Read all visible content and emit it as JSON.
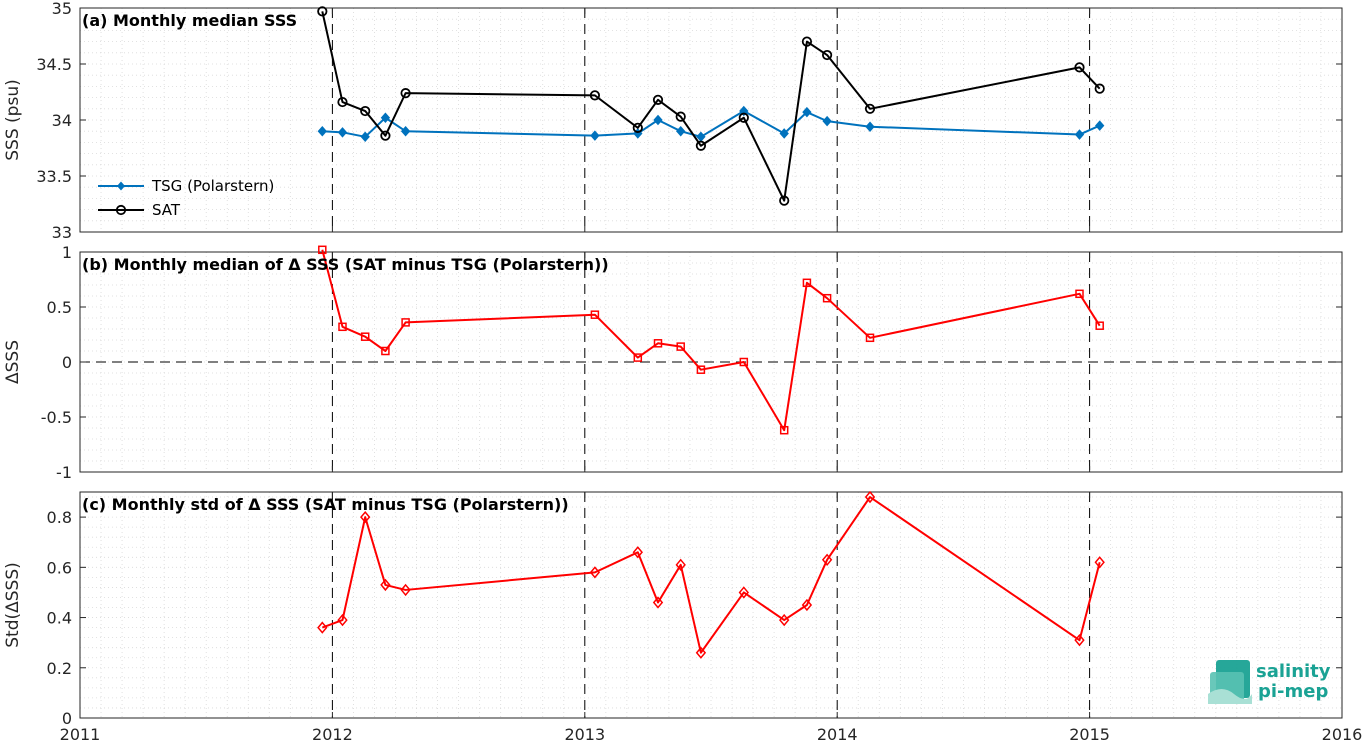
{
  "chart_data": [
    {
      "type": "line",
      "id": "a",
      "title": "(a) Monthly median SSS",
      "xlabel": "",
      "ylabel": "SSS (psu)",
      "xlim": [
        2011,
        2016
      ],
      "ylim": [
        33,
        35
      ],
      "yticks": [
        33,
        33.5,
        34,
        34.5,
        35
      ],
      "ytick_labels": [
        "33",
        "33.5",
        "34",
        "34.5",
        "35"
      ],
      "grid": true,
      "legend_position": "lower-left",
      "series": [
        {
          "name": "TSG (Polarstern)",
          "color": "#0072bd",
          "marker": "diamond-filled",
          "x": [
            2011.96,
            2012.04,
            2012.13,
            2012.21,
            2012.29,
            2013.04,
            2013.21,
            2013.29,
            2013.38,
            2013.46,
            2013.63,
            2013.79,
            2013.88,
            2013.96,
            2014.13,
            2014.96,
            2015.04
          ],
          "values": [
            33.9,
            33.89,
            33.85,
            34.02,
            33.9,
            33.86,
            33.88,
            34.0,
            33.9,
            33.85,
            34.08,
            33.88,
            34.07,
            33.99,
            33.94,
            33.87,
            33.95
          ]
        },
        {
          "name": "SAT",
          "color": "#000000",
          "marker": "circle-open",
          "x": [
            2011.96,
            2012.04,
            2012.13,
            2012.21,
            2012.29,
            2013.04,
            2013.21,
            2013.29,
            2013.38,
            2013.46,
            2013.63,
            2013.79,
            2013.88,
            2013.96,
            2014.13,
            2014.96,
            2015.04
          ],
          "values": [
            34.97,
            34.16,
            34.08,
            33.86,
            34.24,
            34.22,
            33.93,
            34.18,
            34.03,
            33.77,
            34.02,
            33.28,
            34.7,
            34.58,
            34.1,
            34.47,
            34.28
          ]
        }
      ]
    },
    {
      "type": "line",
      "id": "b",
      "title": "(b) Monthly median of Δ SSS (SAT minus TSG (Polarstern))",
      "xlabel": "",
      "ylabel": "ΔSSS",
      "xlim": [
        2011,
        2016
      ],
      "ylim": [
        -1,
        1
      ],
      "yticks": [
        -1,
        -0.5,
        0,
        0.5,
        1
      ],
      "ytick_labels": [
        "-1",
        "-0.5",
        "0",
        "0.5",
        "1"
      ],
      "grid": true,
      "zero_line": true,
      "series": [
        {
          "color": "#ff0000",
          "marker": "square-open",
          "x": [
            2011.96,
            2012.04,
            2012.13,
            2012.21,
            2012.29,
            2013.04,
            2013.21,
            2013.29,
            2013.38,
            2013.46,
            2013.63,
            2013.79,
            2013.88,
            2013.96,
            2014.13,
            2014.96,
            2015.04
          ],
          "values": [
            1.02,
            0.32,
            0.23,
            0.1,
            0.36,
            0.43,
            0.04,
            0.17,
            0.14,
            -0.07,
            0.0,
            -0.62,
            0.72,
            0.58,
            0.22,
            0.62,
            0.33
          ]
        }
      ]
    },
    {
      "type": "line",
      "id": "c",
      "title": "(c) Monthly std of Δ SSS (SAT minus TSG (Polarstern))",
      "xlabel": "",
      "ylabel": "Std(ΔSSS)",
      "xlim": [
        2011,
        2016
      ],
      "ylim": [
        0,
        0.9
      ],
      "yticks": [
        0,
        0.2,
        0.4,
        0.6,
        0.8
      ],
      "ytick_labels": [
        "0",
        "0.2",
        "0.4",
        "0.6",
        "0.8"
      ],
      "xticks": [
        2011,
        2012,
        2013,
        2014,
        2015,
        2016
      ],
      "xtick_labels": [
        "2011",
        "2012",
        "2013",
        "2014",
        "2015",
        "2016"
      ],
      "grid": true,
      "series": [
        {
          "color": "#ff0000",
          "marker": "diamond-open",
          "x": [
            2011.96,
            2012.04,
            2012.13,
            2012.21,
            2012.29,
            2013.04,
            2013.21,
            2013.29,
            2013.38,
            2013.46,
            2013.63,
            2013.79,
            2013.88,
            2013.96,
            2014.13,
            2014.96,
            2015.04
          ],
          "values": [
            0.36,
            0.39,
            0.8,
            0.53,
            0.51,
            0.58,
            0.66,
            0.46,
            0.61,
            0.26,
            0.5,
            0.39,
            0.45,
            0.63,
            0.88,
            0.31,
            0.62
          ]
        }
      ]
    }
  ],
  "logo": {
    "line1": "salinity",
    "line2": "pi-mep",
    "color": "#1aa294"
  }
}
